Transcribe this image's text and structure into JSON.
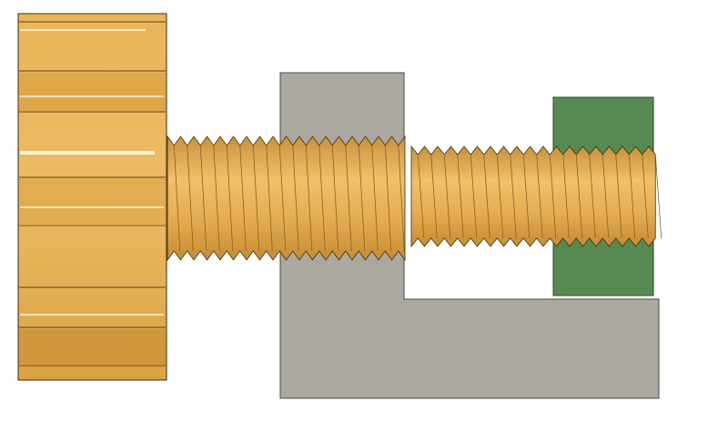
{
  "scene": {
    "description_visible_text": [],
    "colors": {
      "background": "#ffffff",
      "brass_light": "#eab65a",
      "brass_mid": "#e0a849",
      "brass_dark": "#b8862f",
      "brass_highlight": "#fff6dc",
      "bracket_fill": "#aba89f",
      "bracket_stroke": "#4a4a44",
      "nut_fill": "#568a52",
      "nut_stroke": "#2c4a2a",
      "outline": "#3a2e12"
    },
    "parts": {
      "knob": {
        "name": "knurled-knob",
        "color_key": "brass"
      },
      "screw": {
        "name": "threaded-rod",
        "color_key": "brass"
      },
      "bracket": {
        "name": "l-bracket",
        "color_key": "bracket_fill"
      },
      "nut": {
        "name": "square-nut",
        "color_key": "nut_fill"
      }
    }
  }
}
